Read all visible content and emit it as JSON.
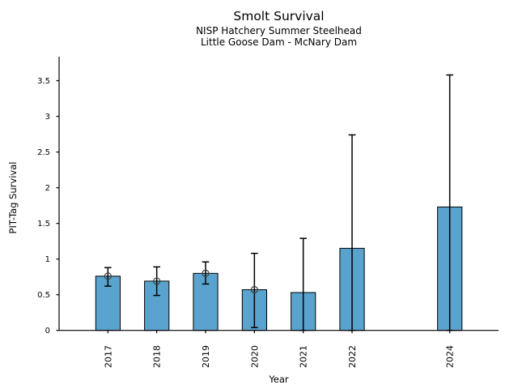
{
  "figure": {
    "title": "Smolt Survival",
    "subtitle_line1": "NISP Hatchery Summer Steelhead",
    "subtitle_line2": "Little Goose Dam - McNary Dam"
  },
  "chart_data": {
    "type": "bar",
    "title": "Smolt Survival",
    "subtitle": [
      "NISP Hatchery Summer Steelhead",
      "Little Goose Dam - McNary Dam"
    ],
    "xlabel": "Year",
    "ylabel": "PIT-Tag Survival",
    "categories": [
      "2017",
      "2018",
      "2019",
      "2020",
      "2021",
      "2022",
      "2024"
    ],
    "x_years": [
      2017,
      2018,
      2019,
      2020,
      2021,
      2022,
      2024
    ],
    "values": [
      0.76,
      0.69,
      0.8,
      0.57,
      0.53,
      1.15,
      1.73
    ],
    "error_low": [
      0.62,
      0.49,
      0.65,
      0.04,
      0.0,
      0.0,
      0.0
    ],
    "error_high": [
      0.88,
      0.89,
      0.96,
      1.08,
      1.29,
      2.74,
      3.58
    ],
    "point_markers_on_bars": [
      true,
      true,
      true,
      true,
      false,
      false,
      false
    ],
    "xlim": [
      2016,
      2025
    ],
    "ylim": [
      0,
      3.79
    ],
    "yticks": [
      0,
      0.5,
      1,
      1.5,
      2,
      2.5,
      3,
      3.5
    ],
    "grid": false,
    "legend": "none",
    "bar_width_years": 0.5,
    "colors": {
      "bar_fill": "#5BA3CF",
      "bar_edge": "#000000",
      "error_bar": "#000000",
      "marker_stroke": "#3f3f3f",
      "axis": "#000000",
      "text": "#000000"
    }
  }
}
